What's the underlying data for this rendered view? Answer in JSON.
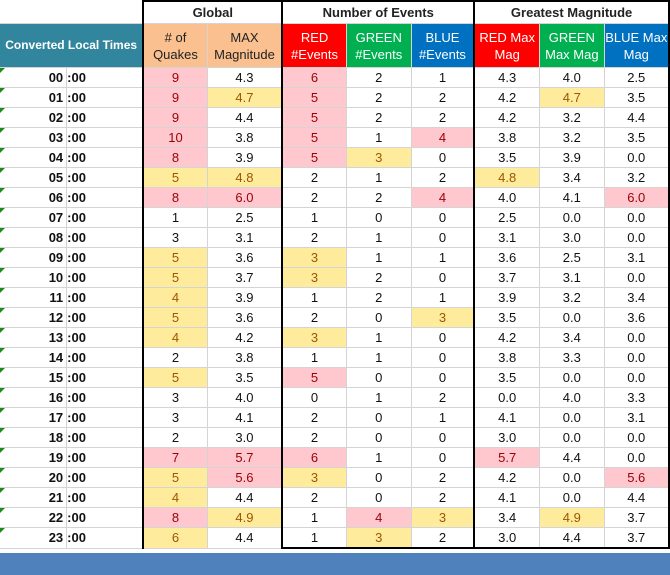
{
  "headers": {
    "global": "Global",
    "number_of_events": "Number of Events",
    "greatest_magnitude": "Greatest Magnitude",
    "converted_local_times": "Converted Local Times",
    "quakes_line1": "# of",
    "quakes_line2": "Quakes",
    "max_mag_line1": "MAX",
    "max_mag_line2": "Magnitude",
    "red_events_line1": "RED",
    "red_events_line2": "#Events",
    "green_events_line1": "GREEN",
    "green_events_line2": "#Events",
    "blue_events_line1": "BLUE",
    "blue_events_line2": "#Events",
    "red_mag_line1": "RED Max",
    "red_mag_line2": "Mag",
    "green_mag_line1": "GREEN",
    "green_mag_line2": "Max Mag",
    "blue_mag_line1": "BLUE Max",
    "blue_mag_line2": "Mag"
  },
  "colors": {
    "times_header": "#31859c",
    "global_header": "#fac090",
    "red": "#ff0000",
    "green": "#00b050",
    "blue": "#0070c0",
    "highlight_pink": "#ffc7ce",
    "highlight_yellow": "#ffeb9c",
    "footer": "#4f81bd"
  },
  "rows": [
    {
      "hour": "00",
      "min": ":00",
      "quakes": "9",
      "max_mag": "4.3",
      "red_events": "6",
      "green_events": "2",
      "blue_events": "1",
      "red_mag": "4.3",
      "green_mag": "4.0",
      "blue_mag": "2.5",
      "hl": {
        "quakes": "p",
        "red_events": "p"
      }
    },
    {
      "hour": "01",
      "min": ":00",
      "quakes": "9",
      "max_mag": "4.7",
      "red_events": "5",
      "green_events": "2",
      "blue_events": "2",
      "red_mag": "4.2",
      "green_mag": "4.7",
      "blue_mag": "3.5",
      "hl": {
        "quakes": "p",
        "max_mag": "y",
        "red_events": "p",
        "green_mag": "y"
      }
    },
    {
      "hour": "02",
      "min": ":00",
      "quakes": "9",
      "max_mag": "4.4",
      "red_events": "5",
      "green_events": "2",
      "blue_events": "2",
      "red_mag": "4.2",
      "green_mag": "3.2",
      "blue_mag": "4.4",
      "hl": {
        "quakes": "p",
        "red_events": "p"
      }
    },
    {
      "hour": "03",
      "min": ":00",
      "quakes": "10",
      "max_mag": "3.8",
      "red_events": "5",
      "green_events": "1",
      "blue_events": "4",
      "red_mag": "3.8",
      "green_mag": "3.2",
      "blue_mag": "3.5",
      "hl": {
        "quakes": "p",
        "red_events": "p",
        "blue_events": "p"
      }
    },
    {
      "hour": "04",
      "min": ":00",
      "quakes": "8",
      "max_mag": "3.9",
      "red_events": "5",
      "green_events": "3",
      "blue_events": "0",
      "red_mag": "3.5",
      "green_mag": "3.9",
      "blue_mag": "0.0",
      "hl": {
        "quakes": "p",
        "red_events": "p",
        "green_events": "y"
      }
    },
    {
      "hour": "05",
      "min": ":00",
      "quakes": "5",
      "max_mag": "4.8",
      "red_events": "2",
      "green_events": "1",
      "blue_events": "2",
      "red_mag": "4.8",
      "green_mag": "3.4",
      "blue_mag": "3.2",
      "hl": {
        "quakes": "y",
        "max_mag": "y",
        "red_mag": "y"
      }
    },
    {
      "hour": "06",
      "min": ":00",
      "quakes": "8",
      "max_mag": "6.0",
      "red_events": "2",
      "green_events": "2",
      "blue_events": "4",
      "red_mag": "4.0",
      "green_mag": "4.1",
      "blue_mag": "6.0",
      "hl": {
        "quakes": "p",
        "max_mag": "p",
        "blue_events": "p",
        "blue_mag": "p"
      }
    },
    {
      "hour": "07",
      "min": ":00",
      "quakes": "1",
      "max_mag": "2.5",
      "red_events": "1",
      "green_events": "0",
      "blue_events": "0",
      "red_mag": "2.5",
      "green_mag": "0.0",
      "blue_mag": "0.0",
      "hl": {}
    },
    {
      "hour": "08",
      "min": ":00",
      "quakes": "3",
      "max_mag": "3.1",
      "red_events": "2",
      "green_events": "1",
      "blue_events": "0",
      "red_mag": "3.1",
      "green_mag": "3.0",
      "blue_mag": "0.0",
      "hl": {}
    },
    {
      "hour": "09",
      "min": ":00",
      "quakes": "5",
      "max_mag": "3.6",
      "red_events": "3",
      "green_events": "1",
      "blue_events": "1",
      "red_mag": "3.6",
      "green_mag": "2.5",
      "blue_mag": "3.1",
      "hl": {
        "quakes": "y",
        "red_events": "y"
      }
    },
    {
      "hour": "10",
      "min": ":00",
      "quakes": "5",
      "max_mag": "3.7",
      "red_events": "3",
      "green_events": "2",
      "blue_events": "0",
      "red_mag": "3.7",
      "green_mag": "3.1",
      "blue_mag": "0.0",
      "hl": {
        "quakes": "y",
        "red_events": "y"
      }
    },
    {
      "hour": "11",
      "min": ":00",
      "quakes": "4",
      "max_mag": "3.9",
      "red_events": "1",
      "green_events": "2",
      "blue_events": "1",
      "red_mag": "3.9",
      "green_mag": "3.2",
      "blue_mag": "3.4",
      "hl": {
        "quakes": "y"
      }
    },
    {
      "hour": "12",
      "min": ":00",
      "quakes": "5",
      "max_mag": "3.6",
      "red_events": "2",
      "green_events": "0",
      "blue_events": "3",
      "red_mag": "3.5",
      "green_mag": "0.0",
      "blue_mag": "3.6",
      "hl": {
        "quakes": "y",
        "blue_events": "y"
      }
    },
    {
      "hour": "13",
      "min": ":00",
      "quakes": "4",
      "max_mag": "4.2",
      "red_events": "3",
      "green_events": "1",
      "blue_events": "0",
      "red_mag": "4.2",
      "green_mag": "3.4",
      "blue_mag": "0.0",
      "hl": {
        "quakes": "y",
        "red_events": "y"
      }
    },
    {
      "hour": "14",
      "min": ":00",
      "quakes": "2",
      "max_mag": "3.8",
      "red_events": "1",
      "green_events": "1",
      "blue_events": "0",
      "red_mag": "3.8",
      "green_mag": "3.3",
      "blue_mag": "0.0",
      "hl": {}
    },
    {
      "hour": "15",
      "min": ":00",
      "quakes": "5",
      "max_mag": "3.5",
      "red_events": "5",
      "green_events": "0",
      "blue_events": "0",
      "red_mag": "3.5",
      "green_mag": "0.0",
      "blue_mag": "0.0",
      "hl": {
        "quakes": "y",
        "red_events": "p"
      }
    },
    {
      "hour": "16",
      "min": ":00",
      "quakes": "3",
      "max_mag": "4.0",
      "red_events": "0",
      "green_events": "1",
      "blue_events": "2",
      "red_mag": "0.0",
      "green_mag": "4.0",
      "blue_mag": "3.3",
      "hl": {}
    },
    {
      "hour": "17",
      "min": ":00",
      "quakes": "3",
      "max_mag": "4.1",
      "red_events": "2",
      "green_events": "0",
      "blue_events": "1",
      "red_mag": "4.1",
      "green_mag": "0.0",
      "blue_mag": "3.1",
      "hl": {}
    },
    {
      "hour": "18",
      "min": ":00",
      "quakes": "2",
      "max_mag": "3.0",
      "red_events": "2",
      "green_events": "0",
      "blue_events": "0",
      "red_mag": "3.0",
      "green_mag": "0.0",
      "blue_mag": "0.0",
      "hl": {}
    },
    {
      "hour": "19",
      "min": ":00",
      "quakes": "7",
      "max_mag": "5.7",
      "red_events": "6",
      "green_events": "1",
      "blue_events": "0",
      "red_mag": "5.7",
      "green_mag": "4.4",
      "blue_mag": "0.0",
      "hl": {
        "quakes": "p",
        "max_mag": "p",
        "red_events": "p",
        "red_mag": "p"
      }
    },
    {
      "hour": "20",
      "min": ":00",
      "quakes": "5",
      "max_mag": "5.6",
      "red_events": "3",
      "green_events": "0",
      "blue_events": "2",
      "red_mag": "4.2",
      "green_mag": "0.0",
      "blue_mag": "5.6",
      "hl": {
        "quakes": "y",
        "max_mag": "p",
        "red_events": "y",
        "blue_mag": "p"
      }
    },
    {
      "hour": "21",
      "min": ":00",
      "quakes": "4",
      "max_mag": "4.4",
      "red_events": "2",
      "green_events": "0",
      "blue_events": "2",
      "red_mag": "4.1",
      "green_mag": "0.0",
      "blue_mag": "4.4",
      "hl": {
        "quakes": "y"
      }
    },
    {
      "hour": "22",
      "min": ":00",
      "quakes": "8",
      "max_mag": "4.9",
      "red_events": "1",
      "green_events": "4",
      "blue_events": "3",
      "red_mag": "3.4",
      "green_mag": "4.9",
      "blue_mag": "3.7",
      "hl": {
        "quakes": "p",
        "max_mag": "y",
        "green_events": "p",
        "blue_events": "y",
        "green_mag": "y"
      }
    },
    {
      "hour": "23",
      "min": ":00",
      "quakes": "6",
      "max_mag": "4.4",
      "red_events": "1",
      "green_events": "3",
      "blue_events": "2",
      "red_mag": "3.0",
      "green_mag": "4.4",
      "blue_mag": "3.7",
      "hl": {
        "quakes": "y",
        "green_events": "y"
      }
    }
  ]
}
